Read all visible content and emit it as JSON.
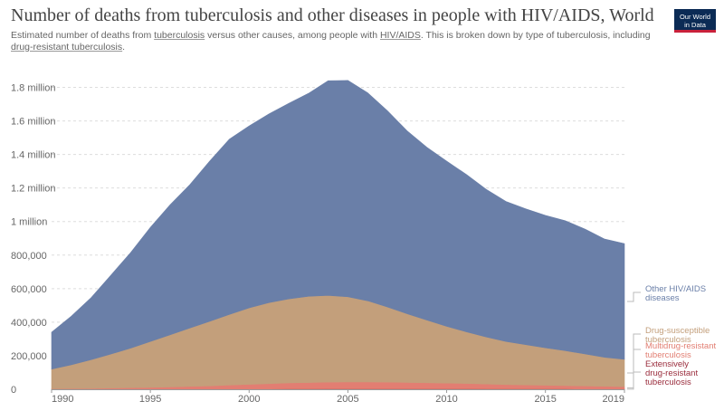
{
  "header": {
    "title": "Number of deaths from tuberculosis and other diseases in people with HIV/AIDS, World",
    "subtitle_parts": [
      "Estimated number of deaths from ",
      "tuberculosis",
      " versus other causes, among people with ",
      "HIV/AIDS",
      ". This is broken down by type of tuberculosis, including ",
      "drug-resistant tuberculosis",
      "."
    ]
  },
  "logo": {
    "line1": "Our World",
    "line2": "in Data"
  },
  "colors": {
    "other": "#6a7fa8",
    "susceptible": "#c39f7b",
    "mdr": "#e27e72",
    "xdr": "#9a2c3c",
    "grid": "#dddddd",
    "axis": "#999999"
  },
  "chart_data": {
    "type": "area",
    "stacked": true,
    "x": [
      1990,
      1991,
      1992,
      1993,
      1994,
      1995,
      1996,
      1997,
      1998,
      1999,
      2000,
      2001,
      2002,
      2003,
      2004,
      2005,
      2006,
      2007,
      2008,
      2009,
      2010,
      2011,
      2012,
      2013,
      2014,
      2015,
      2016,
      2017,
      2018,
      2019
    ],
    "series": [
      {
        "name": "Extensively drug-resistant tuberculosis",
        "color_key": "xdr",
        "values": [
          0,
          0,
          0,
          0,
          0,
          0,
          0,
          0,
          0,
          1000,
          1000,
          1500,
          2000,
          2000,
          2500,
          2500,
          2500,
          2500,
          2500,
          2500,
          2500,
          2500,
          2000,
          2000,
          2000,
          2000,
          2000,
          1500,
          1500,
          1500
        ]
      },
      {
        "name": "Multidrug-resistant tuberculosis",
        "color_key": "mdr",
        "values": [
          3000,
          4000,
          5000,
          7000,
          9000,
          11000,
          14000,
          17000,
          20000,
          24000,
          28000,
          32000,
          36000,
          38000,
          40000,
          41000,
          41000,
          40000,
          38000,
          36000,
          34000,
          32000,
          29000,
          26000,
          24000,
          22000,
          20000,
          18000,
          16000,
          14000
        ]
      },
      {
        "name": "Drug-susceptible tuberculosis",
        "color_key": "susceptible",
        "values": [
          117000,
          142000,
          171000,
          203000,
          236000,
          274000,
          311000,
          348000,
          385000,
          421000,
          456000,
          483000,
          501000,
          514000,
          517000,
          508000,
          484000,
          448000,
          410000,
          374000,
          339000,
          308000,
          281000,
          257000,
          240000,
          223000,
          208000,
          191000,
          173000,
          163000
        ]
      },
      {
        "name": "Other HIV/AIDS diseases",
        "color_key": "other",
        "values": [
          220000,
          290000,
          370000,
          470000,
          570000,
          680000,
          775000,
          855000,
          955000,
          1045000,
          1085000,
          1125000,
          1165000,
          1210000,
          1280000,
          1290000,
          1240000,
          1170000,
          1090000,
          1030000,
          985000,
          938000,
          880000,
          835000,
          810000,
          790000,
          775000,
          745000,
          705000,
          690000
        ]
      }
    ],
    "legend_labels": [
      {
        "key": "other",
        "lines": [
          "Other HIV/AIDS",
          "diseases"
        ]
      },
      {
        "key": "susceptible",
        "lines": [
          "Drug-susceptible",
          "tuberculosis"
        ]
      },
      {
        "key": "mdr",
        "lines": [
          "Multidrug-resistant",
          "tuberculosis"
        ]
      },
      {
        "key": "xdr",
        "lines": [
          "Extensively",
          "drug-resistant",
          "tuberculosis"
        ]
      }
    ],
    "y_ticks": [
      {
        "v": 0,
        "label": "0"
      },
      {
        "v": 200000,
        "label": "200,000"
      },
      {
        "v": 400000,
        "label": "400,000"
      },
      {
        "v": 600000,
        "label": "600,000"
      },
      {
        "v": 800000,
        "label": "800,000"
      },
      {
        "v": 1000000,
        "label": "1 million"
      },
      {
        "v": 1200000,
        "label": "1.2 million"
      },
      {
        "v": 1400000,
        "label": "1.4 million"
      },
      {
        "v": 1600000,
        "label": "1.6 million"
      },
      {
        "v": 1800000,
        "label": "1.8 million"
      }
    ],
    "x_ticks": [
      {
        "v": 1990,
        "label": "1990"
      },
      {
        "v": 1995,
        "label": "1995"
      },
      {
        "v": 2000,
        "label": "2000"
      },
      {
        "v": 2005,
        "label": "2005"
      },
      {
        "v": 2010,
        "label": "2010"
      },
      {
        "v": 2015,
        "label": "2015"
      },
      {
        "v": 2019,
        "label": "2019"
      }
    ],
    "xlim": [
      1990,
      2019
    ],
    "ylim": [
      0,
      1900000
    ],
    "grid": true,
    "legend": "right"
  }
}
